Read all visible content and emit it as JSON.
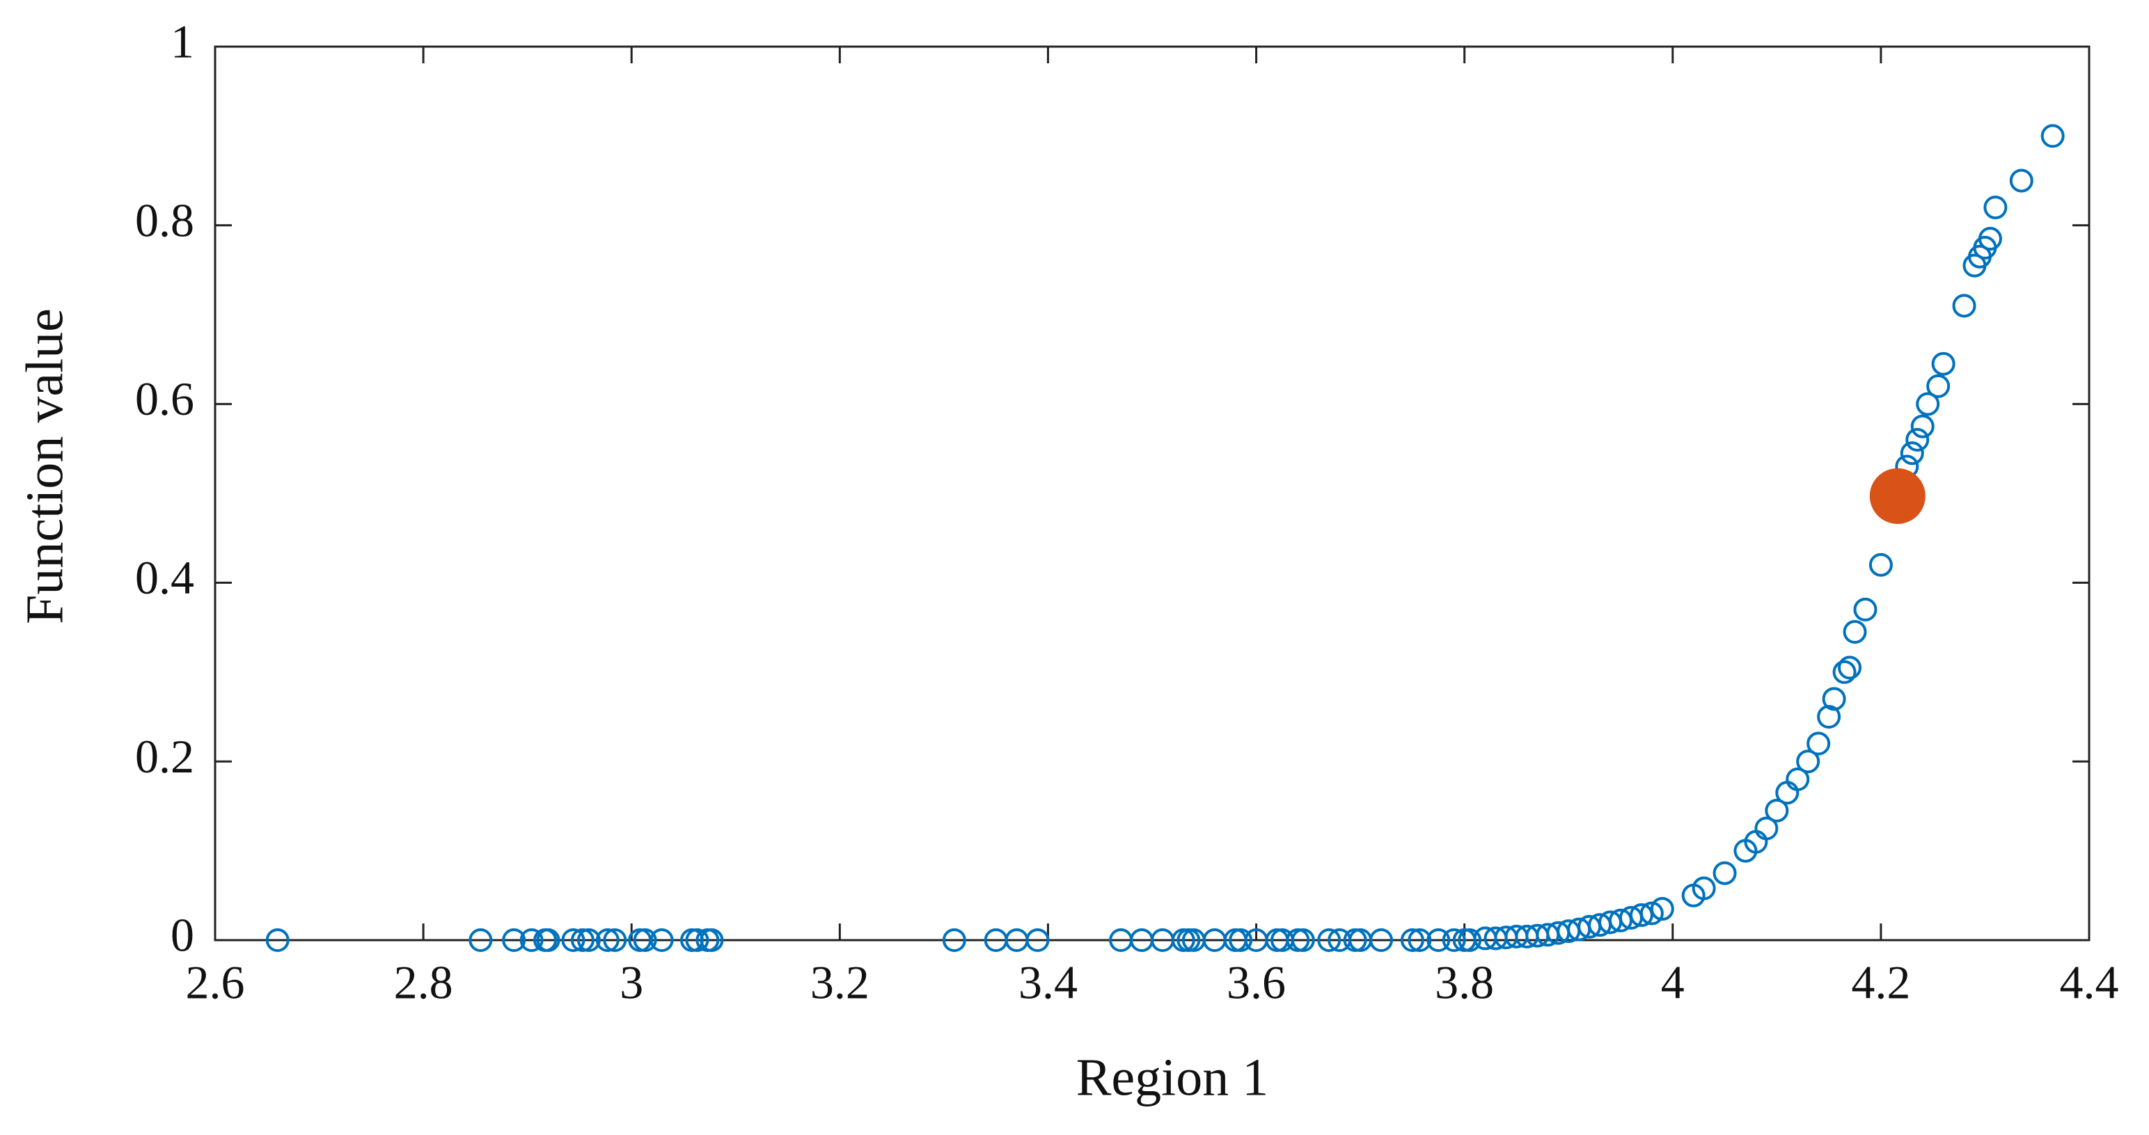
{
  "chart_data": {
    "type": "scatter",
    "xlabel": "Region 1",
    "ylabel": "Function value",
    "xlim": [
      2.6,
      4.4
    ],
    "xticks": [
      2.6,
      2.8,
      3,
      3.2,
      3.4,
      3.6,
      3.8,
      4,
      4.2,
      4.4
    ],
    "ylim": [
      0,
      1
    ],
    "yticks": [
      0,
      0.2,
      0.4,
      0.6,
      0.8,
      1
    ],
    "grid": false,
    "series": [
      {
        "color": "#0072bd",
        "filled": false,
        "x": [
          2.66,
          2.855,
          2.887,
          2.904,
          2.917,
          2.92,
          2.944,
          2.953,
          2.959,
          2.977,
          2.984,
          3.008,
          3.013,
          3.029,
          3.058,
          3.063,
          3.073,
          3.077,
          3.31,
          3.35,
          3.37,
          3.39,
          3.47,
          3.49,
          3.51,
          3.53,
          3.535,
          3.54,
          3.56,
          3.58,
          3.585,
          3.6,
          3.62,
          3.625,
          3.64,
          3.645,
          3.67,
          3.68,
          3.695,
          3.7,
          3.72,
          3.75,
          3.757,
          3.775,
          3.79,
          3.8,
          3.805,
          3.82,
          3.83,
          3.84,
          3.85,
          3.86,
          3.87,
          3.88,
          3.89,
          3.9,
          3.91,
          3.92,
          3.93,
          3.94,
          3.95,
          3.96,
          3.97,
          3.98,
          3.99,
          4.02,
          4.03,
          4.05,
          4.07,
          4.08,
          4.09,
          4.1,
          4.11,
          4.12,
          4.13,
          4.14,
          4.15,
          4.155,
          4.165,
          4.17,
          4.175,
          4.185,
          4.2,
          4.225,
          4.23,
          4.235,
          4.24,
          4.245,
          4.255,
          4.26,
          4.28,
          4.29,
          4.295,
          4.3,
          4.305,
          4.31,
          4.335,
          4.365
        ],
        "values": [
          0,
          0,
          0,
          0,
          0,
          0,
          0,
          0,
          0,
          0,
          0,
          0,
          0,
          0,
          0,
          0,
          0,
          0,
          0,
          0,
          0,
          0,
          0,
          0,
          0,
          0,
          0,
          0,
          0,
          0,
          0,
          0,
          0,
          0,
          0,
          0,
          0,
          0,
          0,
          0,
          0,
          0,
          0,
          0,
          0,
          0,
          0,
          0.002,
          0.002,
          0.003,
          0.004,
          0.004,
          0.005,
          0.006,
          0.008,
          0.01,
          0.012,
          0.015,
          0.017,
          0.02,
          0.022,
          0.025,
          0.028,
          0.03,
          0.035,
          0.05,
          0.058,
          0.075,
          0.1,
          0.11,
          0.125,
          0.145,
          0.165,
          0.18,
          0.2,
          0.22,
          0.25,
          0.27,
          0.3,
          0.305,
          0.345,
          0.37,
          0.42,
          0.53,
          0.545,
          0.56,
          0.575,
          0.6,
          0.62,
          0.645,
          0.71,
          0.755,
          0.765,
          0.775,
          0.785,
          0.82,
          0.85,
          0.9
        ]
      },
      {
        "color": "#d95319",
        "filled": true,
        "x": [
          4.216
        ],
        "values": [
          0.497
        ]
      }
    ]
  }
}
